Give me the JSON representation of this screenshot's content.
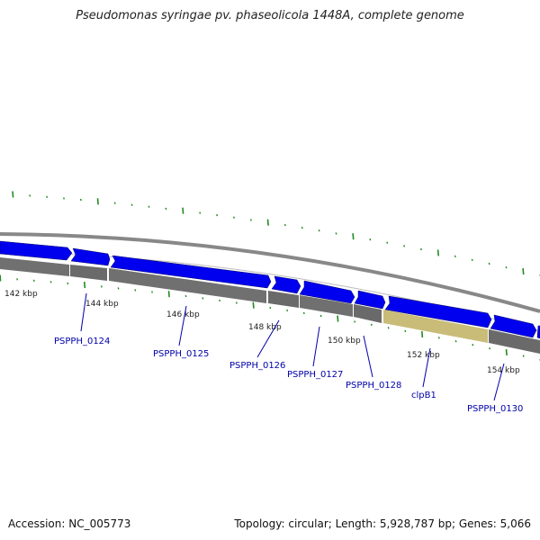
{
  "title": "Pseudomonas syringae pv. phaseolicola 1448A, complete genome",
  "accession": "Accession: NC_005773",
  "summary": "Topology: circular; Length: 5,928,787 bp; Genes: 5,066",
  "colors": {
    "cds": "#0000ee",
    "gene_track": "#707070",
    "highlight_gene": "#c8bc78",
    "tick": "#228b22",
    "label": "#0000aa"
  },
  "kbp_labels": [
    "142 kbp",
    "144 kbp",
    "146 kbp",
    "148 kbp",
    "150 kbp",
    "152 kbp",
    "154 kbp"
  ],
  "genes": [
    {
      "name": "PSPPH_0124"
    },
    {
      "name": "PSPPH_0125"
    },
    {
      "name": "PSPPH_0126"
    },
    {
      "name": "PSPPH_0127"
    },
    {
      "name": "PSPPH_0128"
    },
    {
      "name": "clpB1"
    },
    {
      "name": "PSPPH_0130"
    }
  ]
}
